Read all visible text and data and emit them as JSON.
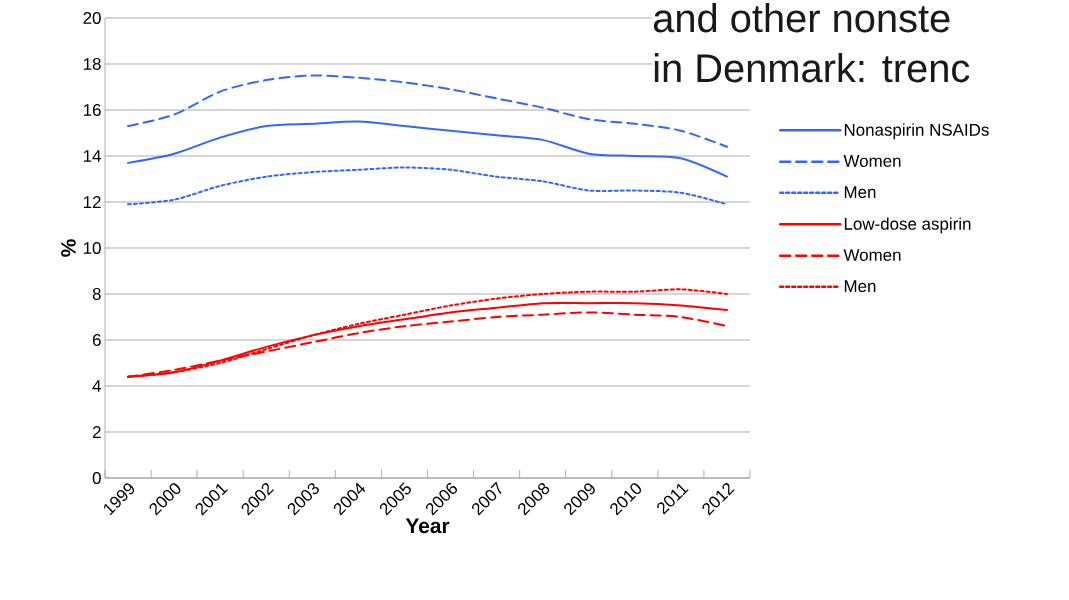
{
  "chart_data": {
    "type": "line",
    "annotations": [
      "and other nonste",
      "in Denmark: trenc"
    ],
    "xlabel": "Year",
    "ylabel": "%",
    "categories": [
      "1999",
      "2000",
      "2001",
      "2002",
      "2003",
      "2004",
      "2005",
      "2006",
      "2007",
      "2008",
      "2009",
      "2010",
      "2011",
      "2012"
    ],
    "series": [
      {
        "name": "Nonaspirin NSAIDs",
        "color": "#3366ff",
        "line_style": "solid",
        "values": [
          13.7,
          14.1,
          14.8,
          15.3,
          15.4,
          15.5,
          15.3,
          15.1,
          14.9,
          14.7,
          14.1,
          14.0,
          13.9,
          13.1
        ]
      },
      {
        "name": "Women",
        "color": "#3366ff",
        "line_style": "dashed",
        "values": [
          15.3,
          15.8,
          16.8,
          17.3,
          17.5,
          17.4,
          17.2,
          16.9,
          16.5,
          16.1,
          15.6,
          15.4,
          15.1,
          14.4
        ]
      },
      {
        "name": "Men",
        "color": "#3366ff",
        "line_style": "dotted",
        "values": [
          11.9,
          12.1,
          12.7,
          13.1,
          13.3,
          13.4,
          13.5,
          13.4,
          13.1,
          12.9,
          12.5,
          12.5,
          12.4,
          11.9
        ]
      },
      {
        "name": "Low-dose aspirin",
        "color": "#ff0000",
        "line_style": "solid",
        "values": [
          4.4,
          4.6,
          5.1,
          5.7,
          6.2,
          6.6,
          6.9,
          7.2,
          7.4,
          7.6,
          7.6,
          7.6,
          7.5,
          7.3
        ]
      },
      {
        "name": "Women",
        "color": "#ff0000",
        "line_style": "dashed",
        "values": [
          4.4,
          4.7,
          5.1,
          5.5,
          5.9,
          6.3,
          6.6,
          6.8,
          7.0,
          7.1,
          7.2,
          7.1,
          7.0,
          6.6
        ]
      },
      {
        "name": "Men",
        "color": "#ff0000",
        "line_style": "dotted",
        "values": [
          4.4,
          4.6,
          5.0,
          5.6,
          6.2,
          6.7,
          7.1,
          7.5,
          7.8,
          8.0,
          8.1,
          8.1,
          8.2,
          8.0
        ]
      }
    ],
    "ylim": [
      0,
      20
    ],
    "yticks": [
      0,
      2,
      4,
      6,
      8,
      10,
      12,
      14,
      16,
      18,
      20
    ],
    "grid": "y",
    "legend": "right",
    "marker": "none"
  }
}
